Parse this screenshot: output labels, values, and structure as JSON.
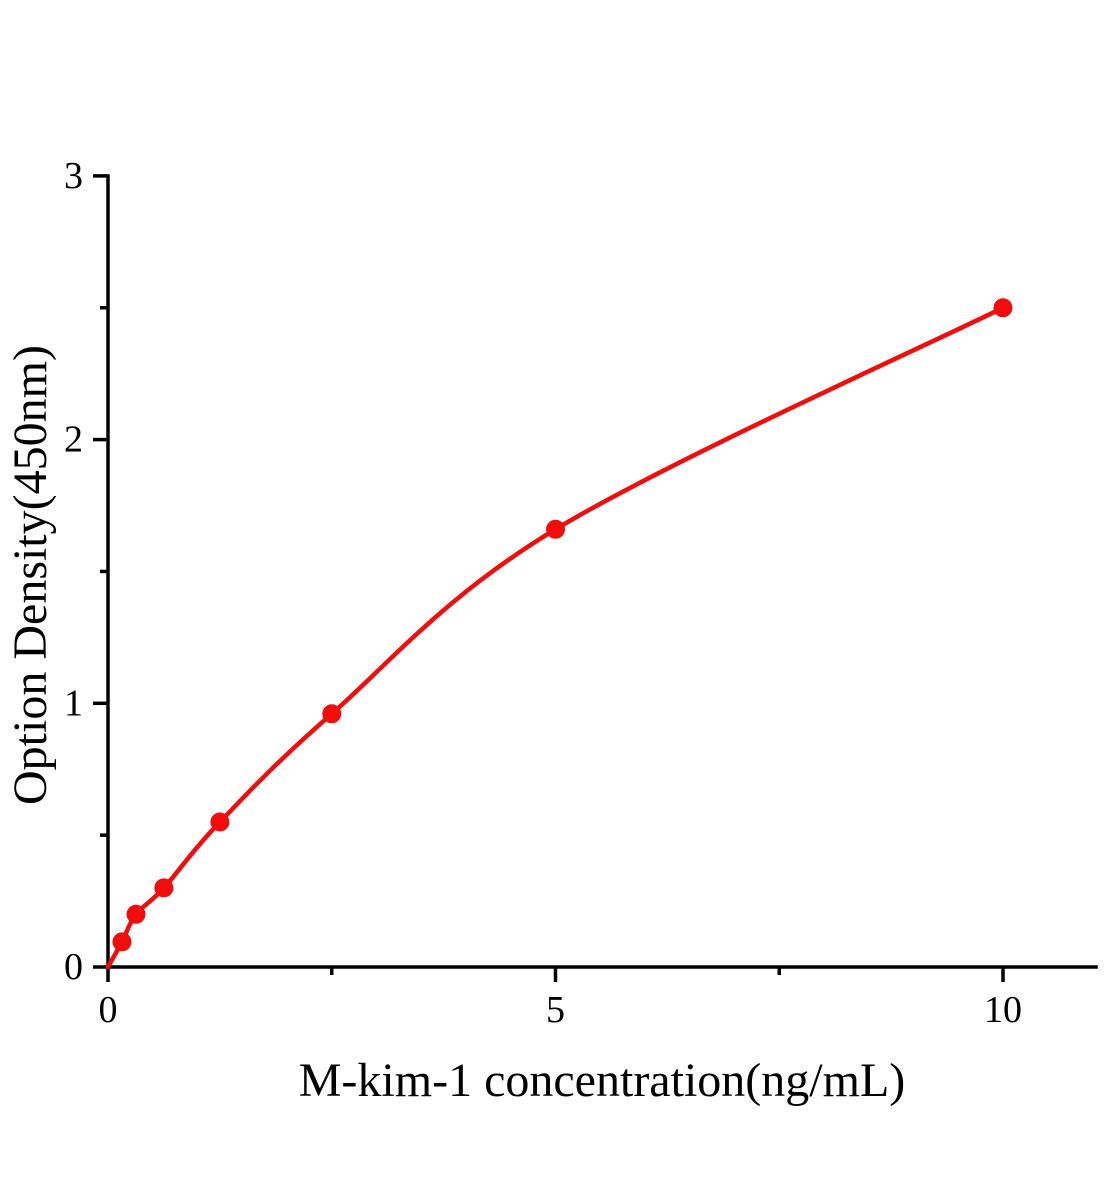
{
  "figure": {
    "background": "#ffffff",
    "kind": "ELISA standard curve plot"
  },
  "chart_data": {
    "type": "scatter",
    "title": "",
    "xlabel": "M-kim-1 concentration(ng/mL)",
    "ylabel": "Option Density(450nm)",
    "series": [
      {
        "name": "M-kim-1 standard curve",
        "x": [
          0.156,
          0.3125,
          0.625,
          1.25,
          2.5,
          5,
          10
        ],
        "y": [
          0.095,
          0.2,
          0.3,
          0.55,
          0.96,
          1.66,
          2.5
        ],
        "marker": "filled-circle",
        "color": "#f20d0d",
        "line": "smooth",
        "curve_starts_at_origin": true
      }
    ],
    "xlim": [
      0,
      11.05
    ],
    "ylim": [
      0,
      3
    ],
    "x_ticks_major": [
      0,
      5,
      10
    ],
    "x_ticks_minor": [
      2.5,
      7.5
    ],
    "x_tick_labels": [
      "0",
      "5",
      "10"
    ],
    "y_ticks_major": [
      0,
      1,
      2,
      3
    ],
    "y_ticks_minor": [
      0.5,
      1.5,
      2.5
    ],
    "y_tick_labels": [
      "0",
      "1",
      "2",
      "3"
    ],
    "grid": false,
    "legend_position": "none",
    "axis_color": "#000000",
    "tick_direction": "out"
  }
}
